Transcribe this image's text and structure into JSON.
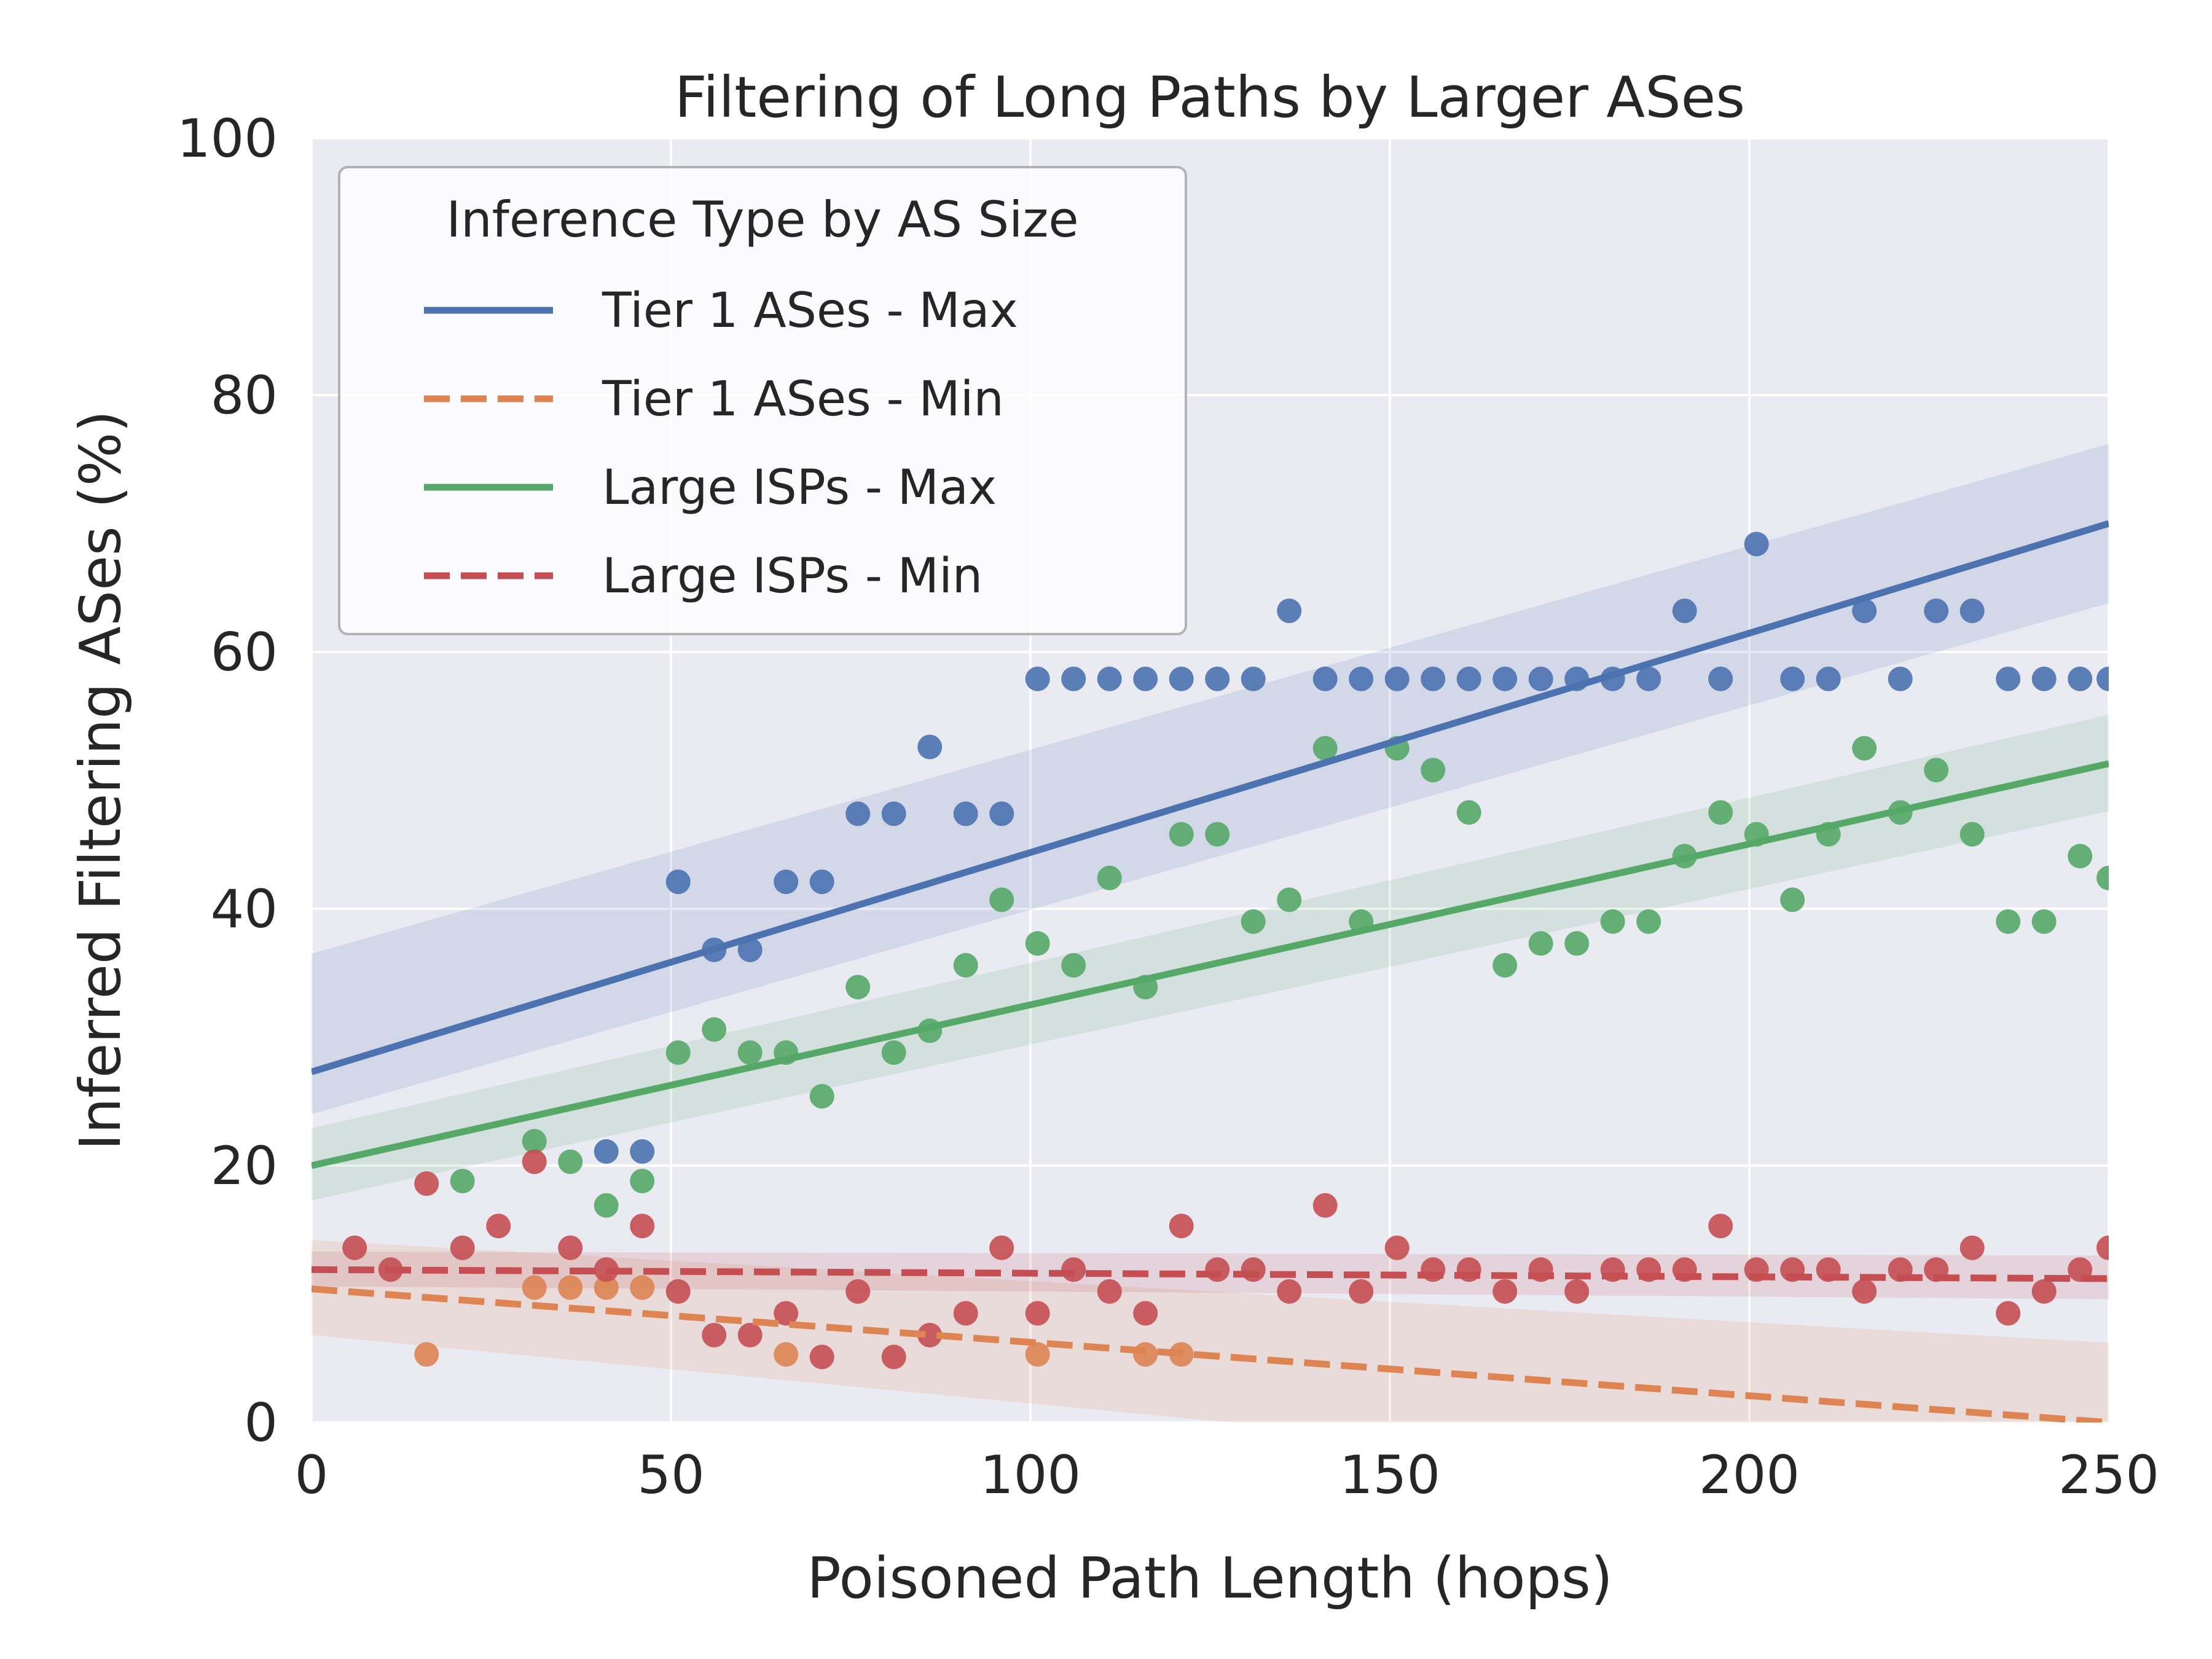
{
  "chart_data": {
    "type": "scatter",
    "title": "Filtering of Long Paths by Larger ASes",
    "xlabel": "Poisoned Path Length (hops)",
    "ylabel": "Inferred Filtering ASes (%)",
    "xlim": [
      0,
      250
    ],
    "ylim": [
      0,
      100
    ],
    "xticks": [
      "0",
      "50",
      "100",
      "150",
      "200",
      "250"
    ],
    "yticks": [
      "0",
      "20",
      "40",
      "60",
      "80",
      "100"
    ],
    "grid": true,
    "legend_title": "Inference Type by AS Size",
    "legend_position": "top-left",
    "series": [
      {
        "name": "Tier 1 ASes - Max",
        "color": "#4c72b0",
        "line_style": "solid",
        "regression": [
          [
            0,
            27.3
          ],
          [
            250,
            70.0
          ]
        ],
        "band_start": [
          24.0,
          36.5
        ],
        "band_end": [
          63.8,
          76.2
        ],
        "points": [
          [
            41,
            21.1
          ],
          [
            46,
            21.1
          ],
          [
            51,
            42.1
          ],
          [
            56,
            36.8
          ],
          [
            61,
            36.8
          ],
          [
            66,
            42.1
          ],
          [
            71,
            42.1
          ],
          [
            76,
            47.4
          ],
          [
            81,
            47.4
          ],
          [
            86,
            52.6
          ],
          [
            91,
            47.4
          ],
          [
            96,
            47.4
          ],
          [
            101,
            57.9
          ],
          [
            106,
            57.9
          ],
          [
            111,
            57.9
          ],
          [
            116,
            57.9
          ],
          [
            121,
            57.9
          ],
          [
            126,
            57.9
          ],
          [
            131,
            57.9
          ],
          [
            136,
            63.2
          ],
          [
            141,
            57.9
          ],
          [
            146,
            57.9
          ],
          [
            151,
            57.9
          ],
          [
            156,
            57.9
          ],
          [
            161,
            57.9
          ],
          [
            166,
            57.9
          ],
          [
            171,
            57.9
          ],
          [
            176,
            57.9
          ],
          [
            181,
            57.9
          ],
          [
            186,
            57.9
          ],
          [
            191,
            63.2
          ],
          [
            196,
            57.9
          ],
          [
            201,
            68.4
          ],
          [
            206,
            57.9
          ],
          [
            211,
            57.9
          ],
          [
            216,
            63.2
          ],
          [
            221,
            57.9
          ],
          [
            226,
            63.2
          ],
          [
            231,
            63.2
          ],
          [
            236,
            57.9
          ],
          [
            241,
            57.9
          ],
          [
            246,
            57.9
          ],
          [
            250,
            57.9
          ]
        ]
      },
      {
        "name": "Tier 1 ASes - Min",
        "color": "#dd8452",
        "line_style": "dashed",
        "regression": [
          [
            0,
            10.4
          ],
          [
            250,
            0
          ]
        ],
        "band_start": [
          6.8,
          14.2
        ],
        "band_end": [
          -6.5,
          6.2
        ],
        "points": [
          [
            16,
            5.3
          ],
          [
            31,
            10.5
          ],
          [
            36,
            10.5
          ],
          [
            41,
            10.5
          ],
          [
            46,
            10.5
          ],
          [
            66,
            5.3
          ],
          [
            101,
            5.3
          ],
          [
            116,
            5.3
          ],
          [
            121,
            5.3
          ]
        ]
      },
      {
        "name": "Large ISPs - Max",
        "color": "#55a868",
        "line_style": "solid",
        "regression": [
          [
            0,
            20.0
          ],
          [
            250,
            51.3
          ]
        ],
        "band_start": [
          17.3,
          22.9
        ],
        "band_end": [
          47.6,
          55.1
        ],
        "points": [
          [
            21,
            18.8
          ],
          [
            31,
            21.9
          ],
          [
            36,
            20.3
          ],
          [
            41,
            16.9
          ],
          [
            46,
            18.8
          ],
          [
            51,
            28.8
          ],
          [
            56,
            30.6
          ],
          [
            61,
            28.8
          ],
          [
            66,
            28.8
          ],
          [
            71,
            25.4
          ],
          [
            76,
            33.9
          ],
          [
            81,
            28.8
          ],
          [
            86,
            30.5
          ],
          [
            91,
            35.6
          ],
          [
            96,
            40.7
          ],
          [
            101,
            37.3
          ],
          [
            106,
            35.6
          ],
          [
            111,
            42.4
          ],
          [
            116,
            33.9
          ],
          [
            121,
            45.8
          ],
          [
            126,
            45.8
          ],
          [
            131,
            39.0
          ],
          [
            136,
            40.7
          ],
          [
            141,
            52.5
          ],
          [
            146,
            39.0
          ],
          [
            151,
            52.5
          ],
          [
            156,
            50.8
          ],
          [
            161,
            47.5
          ],
          [
            166,
            35.6
          ],
          [
            171,
            37.3
          ],
          [
            176,
            37.3
          ],
          [
            181,
            39.0
          ],
          [
            186,
            39.0
          ],
          [
            191,
            44.1
          ],
          [
            196,
            47.5
          ],
          [
            201,
            45.8
          ],
          [
            206,
            40.7
          ],
          [
            211,
            45.8
          ],
          [
            216,
            52.5
          ],
          [
            221,
            47.5
          ],
          [
            226,
            50.8
          ],
          [
            231,
            45.8
          ],
          [
            236,
            39.0
          ],
          [
            241,
            39.0
          ],
          [
            246,
            44.1
          ],
          [
            250,
            42.4
          ]
        ]
      },
      {
        "name": "Large ISPs - Min",
        "color": "#c44e52",
        "line_style": "dashed",
        "regression": [
          [
            0,
            11.9
          ],
          [
            250,
            11.2
          ]
        ],
        "band_start": [
          10.6,
          13.3
        ],
        "band_end": [
          9.6,
          13.0
        ],
        "points": [
          [
            6,
            13.6
          ],
          [
            11,
            11.9
          ],
          [
            16,
            18.6
          ],
          [
            21,
            13.6
          ],
          [
            26,
            15.3
          ],
          [
            31,
            20.3
          ],
          [
            36,
            13.6
          ],
          [
            41,
            11.9
          ],
          [
            46,
            15.3
          ],
          [
            51,
            10.2
          ],
          [
            56,
            6.8
          ],
          [
            61,
            6.8
          ],
          [
            66,
            8.5
          ],
          [
            71,
            5.1
          ],
          [
            76,
            10.2
          ],
          [
            81,
            5.1
          ],
          [
            86,
            6.8
          ],
          [
            91,
            8.5
          ],
          [
            96,
            13.6
          ],
          [
            101,
            8.5
          ],
          [
            106,
            11.9
          ],
          [
            111,
            10.2
          ],
          [
            116,
            8.5
          ],
          [
            121,
            15.3
          ],
          [
            126,
            11.9
          ],
          [
            131,
            11.9
          ],
          [
            136,
            10.2
          ],
          [
            141,
            16.9
          ],
          [
            146,
            10.2
          ],
          [
            151,
            13.6
          ],
          [
            156,
            11.9
          ],
          [
            161,
            11.9
          ],
          [
            166,
            10.2
          ],
          [
            171,
            11.9
          ],
          [
            176,
            10.2
          ],
          [
            181,
            11.9
          ],
          [
            186,
            11.9
          ],
          [
            191,
            11.9
          ],
          [
            196,
            15.3
          ],
          [
            201,
            11.9
          ],
          [
            206,
            11.9
          ],
          [
            211,
            11.9
          ],
          [
            216,
            10.2
          ],
          [
            221,
            11.9
          ],
          [
            226,
            11.9
          ],
          [
            231,
            13.6
          ],
          [
            236,
            8.5
          ],
          [
            241,
            10.2
          ],
          [
            246,
            11.9
          ],
          [
            250,
            13.6
          ]
        ]
      }
    ]
  }
}
